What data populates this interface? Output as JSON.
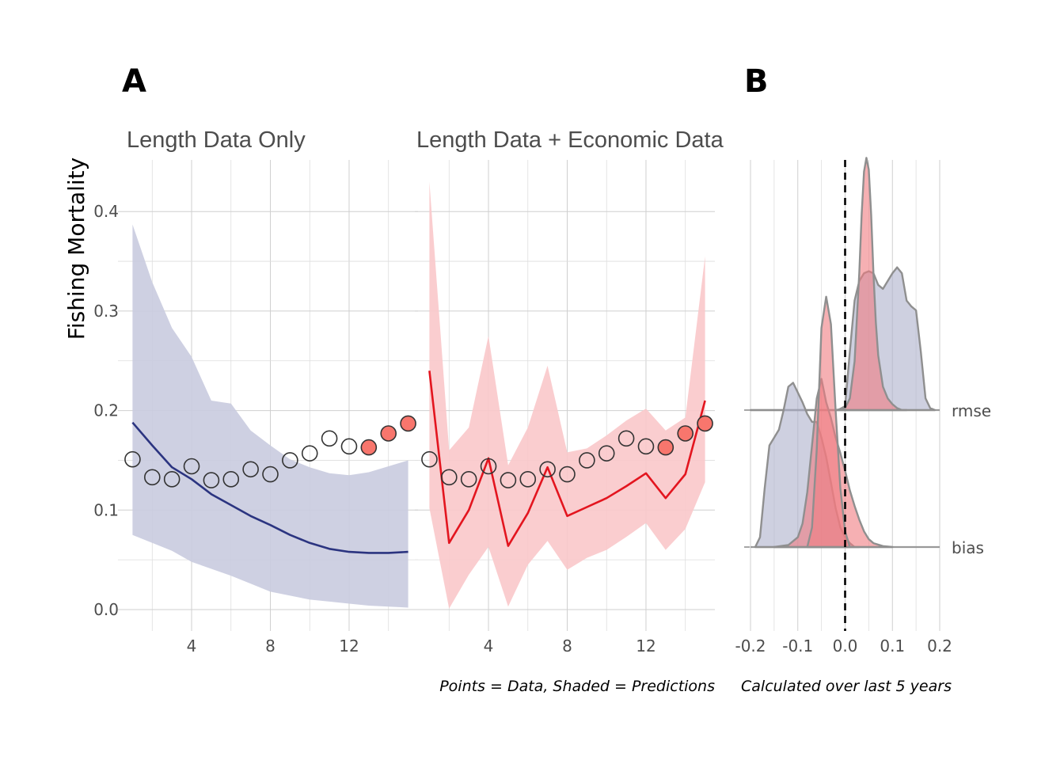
{
  "panel_labels": [
    "A",
    "B"
  ],
  "caption_left": "Points = Data, Shaded = Predictions",
  "caption_right": "Calculated over last 5 years",
  "chart_data": [
    {
      "type": "line",
      "facet_title": "Length Data Only",
      "ylabel": "Fishing Mortality",
      "xlim": [
        0.5,
        15.5
      ],
      "ylim": [
        -0.02,
        0.45
      ],
      "x_ticks": [
        4,
        8,
        12
      ],
      "y_ticks": [
        0.0,
        0.1,
        0.2,
        0.3,
        0.4
      ],
      "y_tick_labels": [
        "0.0",
        "0.1",
        "0.2",
        "0.3",
        "0.4"
      ],
      "x": [
        1,
        2,
        3,
        4,
        5,
        6,
        7,
        8,
        9,
        10,
        11,
        12,
        13,
        14,
        15
      ],
      "observed": [
        0.151,
        0.133,
        0.131,
        0.144,
        0.13,
        0.131,
        0.141,
        0.136,
        0.15,
        0.157,
        0.172,
        0.164,
        0.163,
        0.177,
        0.187
      ],
      "highlighted_years": [
        13,
        14,
        15
      ],
      "predicted": [
        0.188,
        0.165,
        0.143,
        0.131,
        0.116,
        0.105,
        0.094,
        0.085,
        0.075,
        0.067,
        0.061,
        0.058,
        0.057,
        0.057,
        0.058
      ],
      "lower": [
        0.075,
        0.067,
        0.059,
        0.048,
        0.041,
        0.034,
        0.026,
        0.018,
        0.014,
        0.01,
        0.008,
        0.006,
        0.004,
        0.003,
        0.002
      ],
      "upper": [
        0.387,
        0.329,
        0.283,
        0.254,
        0.21,
        0.207,
        0.18,
        0.165,
        0.151,
        0.143,
        0.137,
        0.135,
        0.138,
        0.144,
        0.15
      ],
      "line_color": "#2b3480",
      "ribbon_color": "#c9cbdf",
      "highlight_color": "#f8766d"
    },
    {
      "type": "line",
      "facet_title": "Length Data + Economic Data",
      "xlim": [
        0.5,
        15.5
      ],
      "ylim": [
        -0.02,
        0.45
      ],
      "x_ticks": [
        4,
        8,
        12
      ],
      "x": [
        1,
        2,
        3,
        4,
        5,
        6,
        7,
        8,
        9,
        10,
        11,
        12,
        13,
        14,
        15
      ],
      "observed": [
        0.151,
        0.133,
        0.131,
        0.144,
        0.13,
        0.131,
        0.141,
        0.136,
        0.15,
        0.157,
        0.172,
        0.164,
        0.163,
        0.177,
        0.187
      ],
      "highlighted_years": [
        13,
        14,
        15
      ],
      "predicted": [
        0.24,
        0.067,
        0.1,
        0.152,
        0.064,
        0.097,
        0.143,
        0.094,
        0.103,
        0.112,
        0.124,
        0.137,
        0.112,
        0.136,
        0.21
      ],
      "lower": [
        0.102,
        0.001,
        0.035,
        0.063,
        0.003,
        0.045,
        0.069,
        0.04,
        0.052,
        0.06,
        0.073,
        0.087,
        0.06,
        0.081,
        0.128
      ],
      "upper": [
        0.43,
        0.16,
        0.183,
        0.275,
        0.145,
        0.183,
        0.245,
        0.158,
        0.162,
        0.175,
        0.19,
        0.202,
        0.18,
        0.193,
        0.355
      ],
      "line_color": "#e3151f",
      "ribbon_color": "#f9c8ca",
      "highlight_color": "#f8766d"
    },
    {
      "type": "area",
      "subtype": "ridgeline-density",
      "xlim": [
        -0.2,
        0.2
      ],
      "x_ticks": [
        -0.2,
        -0.1,
        0.0,
        0.1,
        0.2
      ],
      "x_tick_labels": [
        "-0.2",
        "-0.1",
        "0.0",
        "0.1",
        "0.2"
      ],
      "categories": [
        "bias",
        "rmse"
      ],
      "reference_line_x": 0.0,
      "series": [
        {
          "category": "rmse",
          "group": "blue",
          "color": "#aeb0cc",
          "x": [
            -0.2,
            -0.015,
            0.0,
            0.01,
            0.02,
            0.03,
            0.04,
            0.05,
            0.06,
            0.07,
            0.08,
            0.09,
            0.1,
            0.11,
            0.12,
            0.13,
            0.14,
            0.15,
            0.16,
            0.17,
            0.18,
            0.19
          ],
          "density": [
            0.0,
            0.0,
            0.02,
            0.3,
            0.56,
            0.66,
            0.7,
            0.71,
            0.7,
            0.64,
            0.62,
            0.66,
            0.7,
            0.73,
            0.7,
            0.56,
            0.53,
            0.51,
            0.3,
            0.06,
            0.01,
            0.0
          ]
        },
        {
          "category": "rmse",
          "group": "red",
          "color": "#f07b80",
          "x": [
            -0.02,
            0.0,
            0.01,
            0.02,
            0.03,
            0.035,
            0.04,
            0.045,
            0.05,
            0.055,
            0.06,
            0.065,
            0.07,
            0.08,
            0.09,
            0.1,
            0.11,
            0.12,
            0.13
          ],
          "density": [
            0.0,
            0.01,
            0.06,
            0.25,
            0.7,
            1.0,
            1.22,
            1.29,
            1.23,
            1.0,
            0.7,
            0.45,
            0.28,
            0.12,
            0.06,
            0.03,
            0.01,
            0.0,
            0.0
          ]
        },
        {
          "category": "bias",
          "group": "blue",
          "color": "#aeb0cc",
          "x": [
            -0.19,
            -0.18,
            -0.17,
            -0.16,
            -0.15,
            -0.14,
            -0.13,
            -0.12,
            -0.11,
            -0.1,
            -0.09,
            -0.08,
            -0.07,
            -0.06,
            -0.05,
            -0.04,
            -0.03,
            -0.02,
            -0.01,
            0.0,
            0.01,
            0.02,
            0.03
          ],
          "density": [
            0.0,
            0.05,
            0.3,
            0.52,
            0.56,
            0.6,
            0.7,
            0.82,
            0.84,
            0.79,
            0.74,
            0.68,
            0.64,
            0.64,
            0.56,
            0.46,
            0.33,
            0.2,
            0.1,
            0.05,
            0.02,
            0.0,
            0.0
          ]
        },
        {
          "category": "bias",
          "group": "red",
          "color": "#f07b80",
          "x": [
            -0.15,
            -0.12,
            -0.1,
            -0.09,
            -0.08,
            -0.07,
            -0.06,
            -0.05,
            -0.04,
            -0.03,
            -0.02,
            -0.01,
            0.0,
            0.01,
            0.02,
            0.03,
            0.04,
            0.05,
            0.06,
            0.08,
            0.1
          ],
          "density": [
            0.0,
            0.01,
            0.05,
            0.12,
            0.28,
            0.52,
            0.76,
            0.86,
            0.74,
            0.66,
            0.56,
            0.48,
            0.39,
            0.29,
            0.21,
            0.14,
            0.08,
            0.04,
            0.02,
            0.005,
            0.0
          ]
        },
        {
          "category": "bias",
          "group": "red-peak",
          "color": "#f07b80",
          "x": [
            -0.08,
            -0.07,
            -0.06,
            -0.05,
            -0.04,
            -0.03,
            -0.02,
            -0.01,
            0.0,
            0.01
          ],
          "density": [
            0.0,
            0.1,
            0.5,
            1.12,
            1.28,
            1.14,
            0.7,
            0.3,
            0.08,
            0.0
          ]
        }
      ]
    }
  ]
}
